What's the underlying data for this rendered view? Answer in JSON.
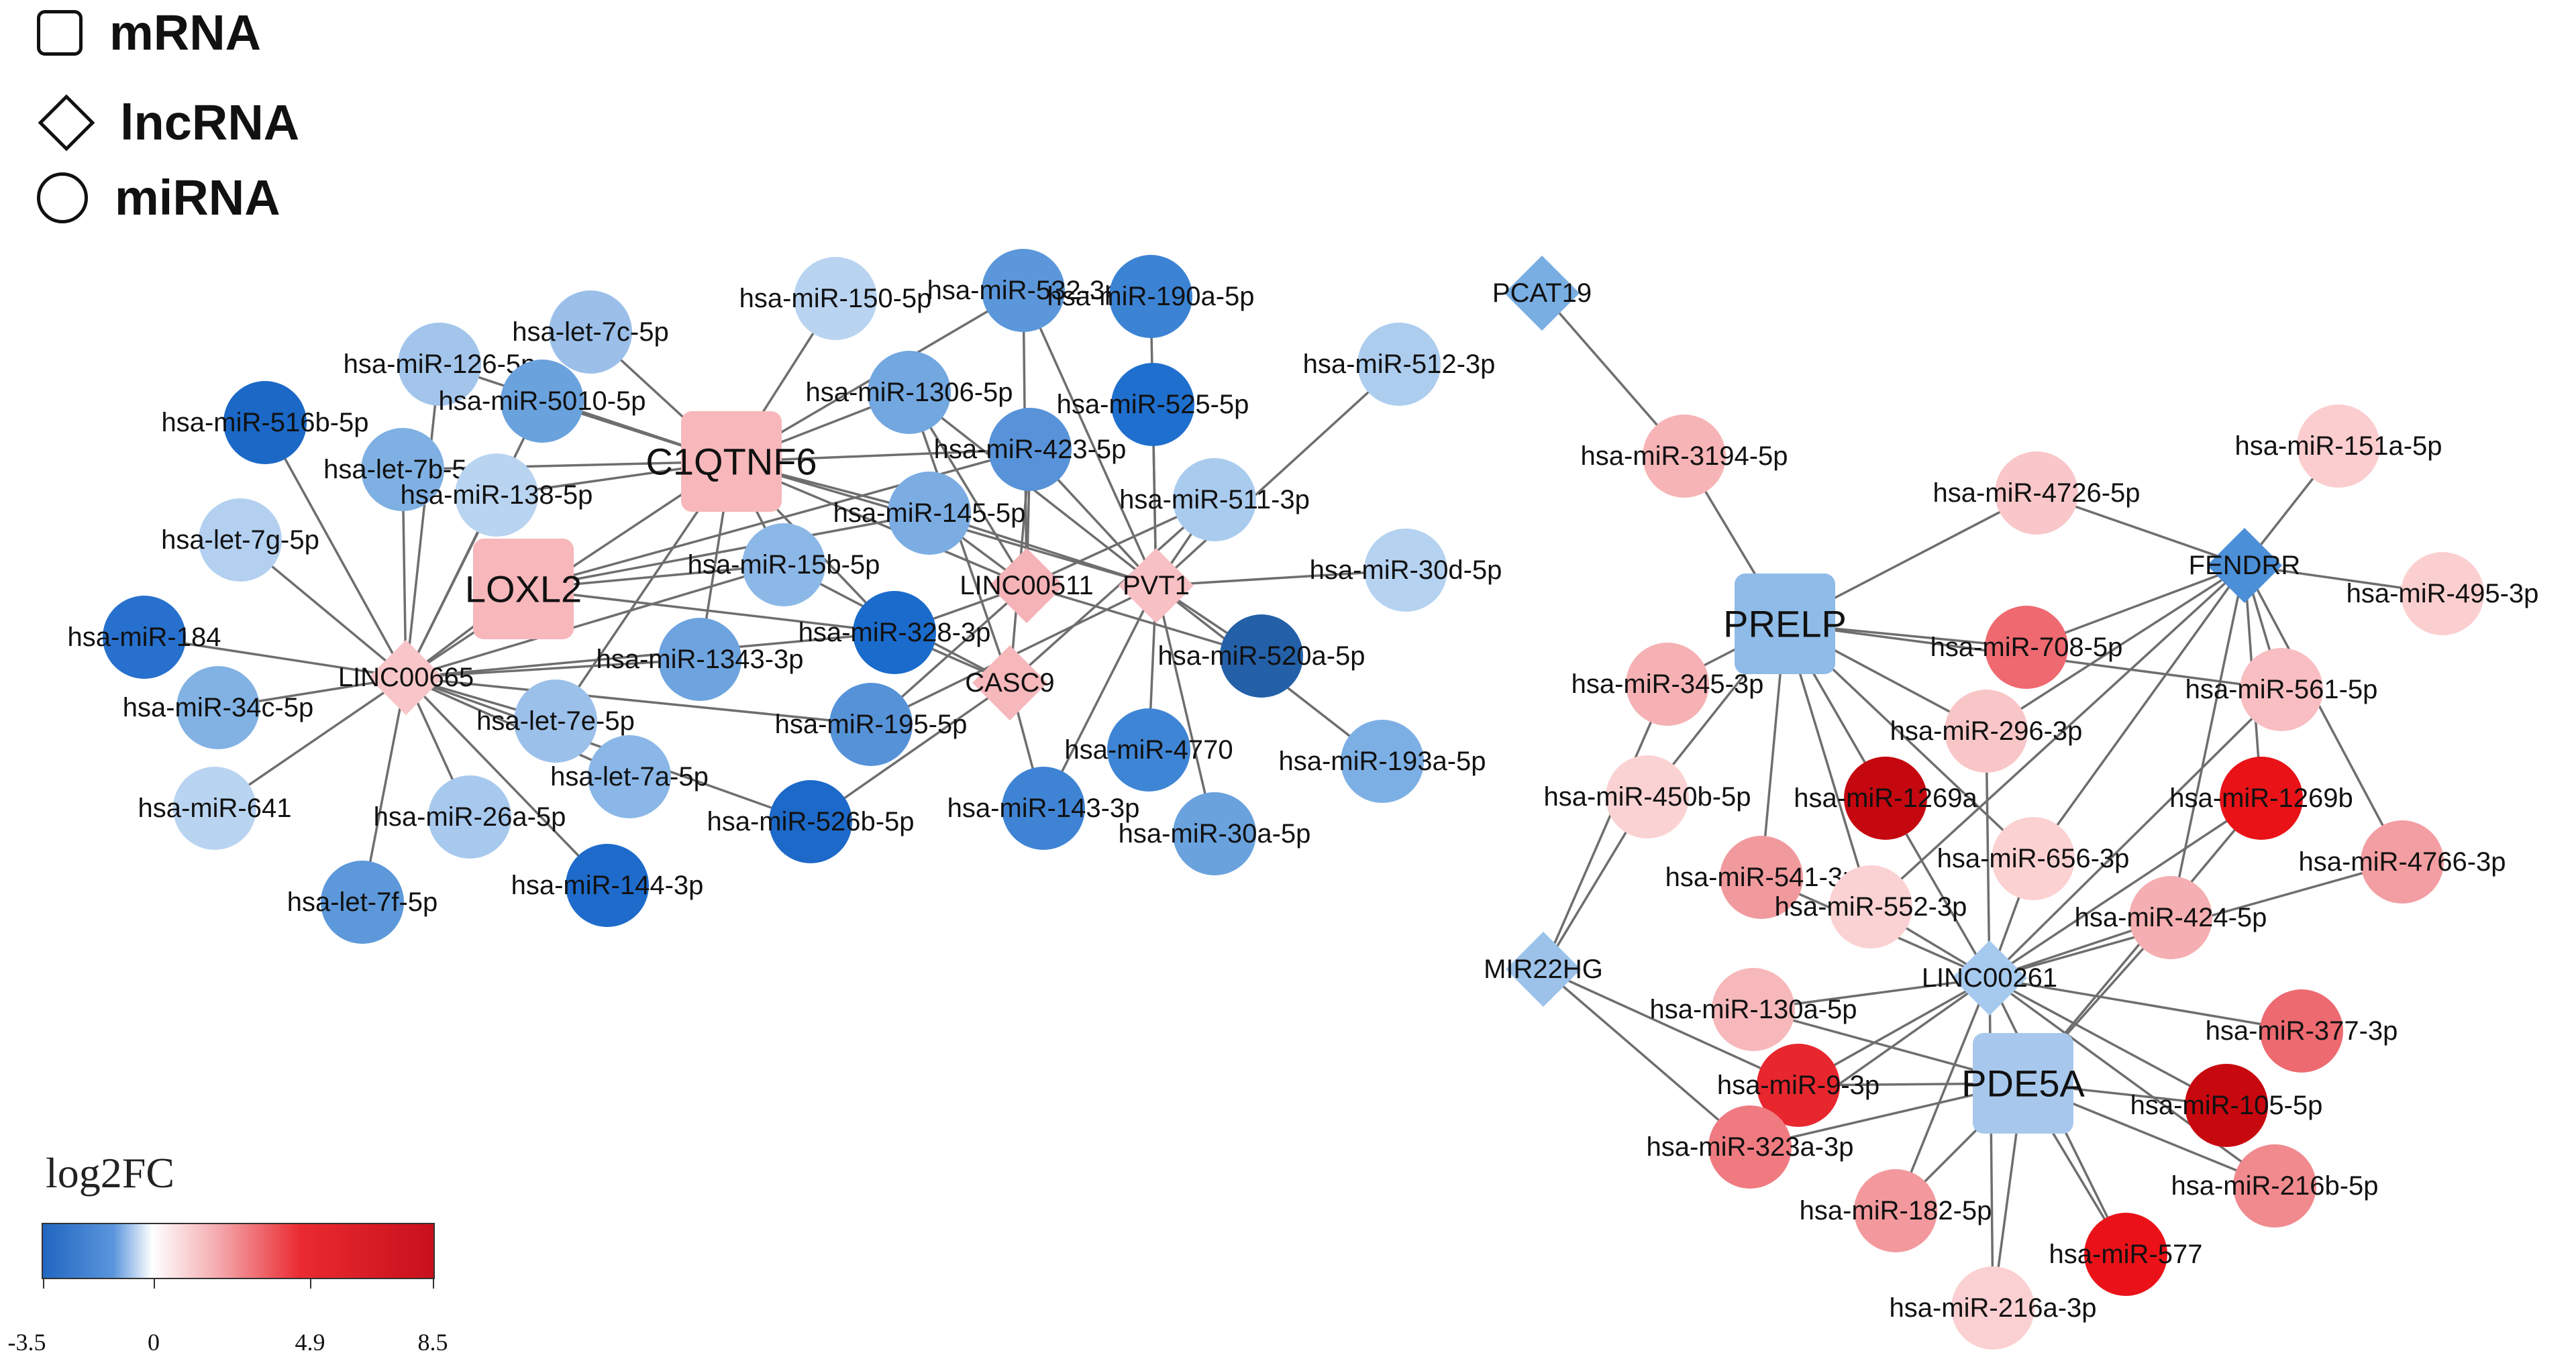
{
  "legend": {
    "shapes": [
      {
        "shape": "square",
        "label": "mRNA"
      },
      {
        "shape": "diamond",
        "label": "lncRNA"
      },
      {
        "shape": "circle",
        "label": "miRNA"
      }
    ],
    "colorbar": {
      "title": "log2FC",
      "ticks": [
        "-3.5",
        "0",
        "4.9",
        "8.5"
      ],
      "low_color": "#2166c1",
      "mid_color": "#ffffff",
      "high_color": "#c8101c"
    }
  },
  "nodes": [
    {
      "id": "C1QTNF6",
      "type": "mRNA",
      "color": "#f7b7bb",
      "big": true
    },
    {
      "id": "LOXL2",
      "type": "mRNA",
      "color": "#f7b7bb",
      "big": true
    },
    {
      "id": "PRELP",
      "type": "mRNA",
      "color": "#8fbbe8",
      "big": true
    },
    {
      "id": "PDE5A",
      "type": "mRNA",
      "color": "#a7c8ec",
      "big": true
    },
    {
      "id": "LINC00665",
      "type": "lncRNA",
      "color": "#f8c6c8"
    },
    {
      "id": "LINC00511",
      "type": "lncRNA",
      "color": "#f5b3b7"
    },
    {
      "id": "PVT1",
      "type": "lncRNA",
      "color": "#f7c0c3"
    },
    {
      "id": "CASC9",
      "type": "lncRNA",
      "color": "#f6b8bb"
    },
    {
      "id": "PCAT19",
      "type": "lncRNA",
      "color": "#79aee3"
    },
    {
      "id": "FENDRR",
      "type": "lncRNA",
      "color": "#4b8fd8"
    },
    {
      "id": "MIR22HG",
      "type": "lncRNA",
      "color": "#9cc2ea"
    },
    {
      "id": "LINC00261",
      "type": "lncRNA",
      "color": "#a6c9ee"
    },
    {
      "id": "hsa-miR-150-5p",
      "type": "miRNA",
      "color": "#b9d4f1"
    },
    {
      "id": "hsa-miR-532-3p",
      "type": "miRNA",
      "color": "#5b97da"
    },
    {
      "id": "hsa-miR-190a-5p",
      "type": "miRNA",
      "color": "#3c83d4"
    },
    {
      "id": "hsa-let-7c-5p",
      "type": "miRNA",
      "color": "#9bbfe9"
    },
    {
      "id": "hsa-miR-126-5p",
      "type": "miRNA",
      "color": "#a3c5eb"
    },
    {
      "id": "hsa-miR-5010-5p",
      "type": "miRNA",
      "color": "#6aa2de"
    },
    {
      "id": "hsa-miR-1306-5p",
      "type": "miRNA",
      "color": "#72a7e0"
    },
    {
      "id": "hsa-miR-525-5p",
      "type": "miRNA",
      "color": "#1f6fce"
    },
    {
      "id": "hsa-miR-512-3p",
      "type": "miRNA",
      "color": "#adcdef"
    },
    {
      "id": "hsa-miR-516b-5p",
      "type": "miRNA",
      "color": "#1b68c7"
    },
    {
      "id": "hsa-let-7b-5p",
      "type": "miRNA",
      "color": "#7fb0e3"
    },
    {
      "id": "hsa-miR-138-5p",
      "type": "miRNA",
      "color": "#b9d4f1"
    },
    {
      "id": "hsa-miR-423-5p",
      "type": "miRNA",
      "color": "#5893d9"
    },
    {
      "id": "hsa-miR-511-3p",
      "type": "miRNA",
      "color": "#a9cbee"
    },
    {
      "id": "hsa-miR-145-5p",
      "type": "miRNA",
      "color": "#7badE3"
    },
    {
      "id": "hsa-let-7g-5p",
      "type": "miRNA",
      "color": "#b3d0f0"
    },
    {
      "id": "hsa-miR-15b-5p",
      "type": "miRNA",
      "color": "#8cb8e7"
    },
    {
      "id": "hsa-miR-30d-5p",
      "type": "miRNA",
      "color": "#b5d2f1"
    },
    {
      "id": "hsa-miR-184",
      "type": "miRNA",
      "color": "#2770cd"
    },
    {
      "id": "hsa-miR-328-3p",
      "type": "miRNA",
      "color": "#1a6bcc"
    },
    {
      "id": "hsa-miR-520a-5p",
      "type": "miRNA",
      "color": "#2360a8"
    },
    {
      "id": "hsa-miR-1343-3p",
      "type": "miRNA",
      "color": "#6da4df"
    },
    {
      "id": "hsa-miR-34c-5p",
      "type": "miRNA",
      "color": "#82b2e4"
    },
    {
      "id": "hsa-let-7e-5p",
      "type": "miRNA",
      "color": "#9bc0ea"
    },
    {
      "id": "hsa-miR-195-5p",
      "type": "miRNA",
      "color": "#5592d8"
    },
    {
      "id": "hsa-miR-4770",
      "type": "miRNA",
      "color": "#3f85d5"
    },
    {
      "id": "hsa-miR-193a-5p",
      "type": "miRNA",
      "color": "#7cafe4"
    },
    {
      "id": "hsa-let-7a-5p",
      "type": "miRNA",
      "color": "#8ab7e7"
    },
    {
      "id": "hsa-miR-641",
      "type": "miRNA",
      "color": "#b9d4f1"
    },
    {
      "id": "hsa-miR-26a-5p",
      "type": "miRNA",
      "color": "#a8c9ee"
    },
    {
      "id": "hsa-miR-526b-5p",
      "type": "miRNA",
      "color": "#1d69c9"
    },
    {
      "id": "hsa-miR-143-3p",
      "type": "miRNA",
      "color": "#3f84d4"
    },
    {
      "id": "hsa-miR-30a-5p",
      "type": "miRNA",
      "color": "#6aa2de"
    },
    {
      "id": "hsa-miR-144-3p",
      "type": "miRNA",
      "color": "#1e6bcb"
    },
    {
      "id": "hsa-let-7f-5p",
      "type": "miRNA",
      "color": "#5c98da"
    },
    {
      "id": "hsa-miR-3194-5p",
      "type": "miRNA",
      "color": "#f6b4b6"
    },
    {
      "id": "hsa-miR-151a-5p",
      "type": "miRNA",
      "color": "#fbcdcf"
    },
    {
      "id": "hsa-miR-4726-5p",
      "type": "miRNA",
      "color": "#f9c7c9"
    },
    {
      "id": "hsa-miR-495-3p",
      "type": "miRNA",
      "color": "#fbcfd0"
    },
    {
      "id": "hsa-miR-708-5p",
      "type": "miRNA",
      "color": "#ee6970"
    },
    {
      "id": "hsa-miR-345-3p",
      "type": "miRNA",
      "color": "#f5b1b4"
    },
    {
      "id": "hsa-miR-561-5p",
      "type": "miRNA",
      "color": "#f8bec1"
    },
    {
      "id": "hsa-miR-296-3p",
      "type": "miRNA",
      "color": "#f9c6c8"
    },
    {
      "id": "hsa-miR-450b-5p",
      "type": "miRNA",
      "color": "#fbd2d3"
    },
    {
      "id": "hsa-miR-1269a",
      "type": "miRNA",
      "color": "#c5070f"
    },
    {
      "id": "hsa-miR-1269b",
      "type": "miRNA",
      "color": "#e81217"
    },
    {
      "id": "hsa-miR-656-3p",
      "type": "miRNA",
      "color": "#fbd1d2"
    },
    {
      "id": "hsa-miR-4766-3p",
      "type": "miRNA",
      "color": "#f39ea2"
    },
    {
      "id": "hsa-miR-541-3p",
      "type": "miRNA",
      "color": "#f19a9e"
    },
    {
      "id": "hsa-miR-552-3p",
      "type": "miRNA",
      "color": "#fbd2d3"
    },
    {
      "id": "hsa-miR-424-5p",
      "type": "miRNA",
      "color": "#f5aeb1"
    },
    {
      "id": "hsa-miR-130a-5p",
      "type": "miRNA",
      "color": "#f7b8bb"
    },
    {
      "id": "hsa-miR-377-3p",
      "type": "miRNA",
      "color": "#ec6a70"
    },
    {
      "id": "hsa-miR-9-3p",
      "type": "miRNA",
      "color": "#e8262e"
    },
    {
      "id": "hsa-miR-105-5p",
      "type": "miRNA",
      "color": "#c8080f"
    },
    {
      "id": "hsa-miR-323a-3p",
      "type": "miRNA",
      "color": "#ef7b81"
    },
    {
      "id": "hsa-miR-216b-5p",
      "type": "miRNA",
      "color": "#f08a8e"
    },
    {
      "id": "hsa-miR-182-5p",
      "type": "miRNA",
      "color": "#f3999d"
    },
    {
      "id": "hsa-miR-577",
      "type": "miRNA",
      "color": "#ea1218"
    },
    {
      "id": "hsa-miR-216a-3p",
      "type": "miRNA",
      "color": "#fbd0d2"
    }
  ],
  "edges": [
    [
      "C1QTNF6",
      "hsa-miR-150-5p"
    ],
    [
      "C1QTNF6",
      "hsa-miR-532-3p"
    ],
    [
      "C1QTNF6",
      "hsa-let-7c-5p"
    ],
    [
      "C1QTNF6",
      "hsa-miR-126-5p"
    ],
    [
      "C1QTNF6",
      "hsa-miR-5010-5p"
    ],
    [
      "C1QTNF6",
      "hsa-miR-1306-5p"
    ],
    [
      "C1QTNF6",
      "hsa-miR-423-5p"
    ],
    [
      "C1QTNF6",
      "hsa-let-7b-5p"
    ],
    [
      "C1QTNF6",
      "hsa-miR-138-5p"
    ],
    [
      "C1QTNF6",
      "hsa-miR-145-5p"
    ],
    [
      "C1QTNF6",
      "hsa-miR-15b-5p"
    ],
    [
      "C1QTNF6",
      "hsa-miR-1343-3p"
    ],
    [
      "C1QTNF6",
      "hsa-let-7e-5p"
    ],
    [
      "C1QTNF6",
      "hsa-miR-328-3p"
    ],
    [
      "C1QTNF6",
      "LINC00665"
    ],
    [
      "C1QTNF6",
      "PVT1"
    ],
    [
      "C1QTNF6",
      "LINC00511"
    ],
    [
      "LOXL2",
      "LINC00665"
    ],
    [
      "LOXL2",
      "hsa-miR-423-5p"
    ],
    [
      "LOXL2",
      "hsa-miR-328-3p"
    ],
    [
      "LOXL2",
      "hsa-miR-145-5p"
    ],
    [
      "LOXL2",
      "hsa-miR-15b-5p"
    ],
    [
      "LINC00665",
      "hsa-miR-516b-5p"
    ],
    [
      "LINC00665",
      "hsa-let-7b-5p"
    ],
    [
      "LINC00665",
      "hsa-let-7g-5p"
    ],
    [
      "LINC00665",
      "hsa-miR-184"
    ],
    [
      "LINC00665",
      "hsa-miR-34c-5p"
    ],
    [
      "LINC00665",
      "hsa-miR-641"
    ],
    [
      "LINC00665",
      "hsa-miR-26a-5p"
    ],
    [
      "LINC00665",
      "hsa-let-7f-5p"
    ],
    [
      "LINC00665",
      "hsa-miR-144-3p"
    ],
    [
      "LINC00665",
      "hsa-let-7a-5p"
    ],
    [
      "LINC00665",
      "hsa-let-7e-5p"
    ],
    [
      "LINC00665",
      "hsa-miR-526b-5p"
    ],
    [
      "LINC00665",
      "hsa-miR-1343-3p"
    ],
    [
      "LINC00665",
      "hsa-miR-15b-5p"
    ],
    [
      "LINC00665",
      "hsa-miR-5010-5p"
    ],
    [
      "LINC00665",
      "hsa-miR-126-5p"
    ],
    [
      "LINC00665",
      "hsa-miR-138-5p"
    ],
    [
      "LINC00665",
      "hsa-miR-195-5p"
    ],
    [
      "LINC00665",
      "hsa-miR-328-3p"
    ],
    [
      "PVT1",
      "hsa-miR-190a-5p"
    ],
    [
      "PVT1",
      "hsa-miR-525-5p"
    ],
    [
      "PVT1",
      "hsa-miR-512-3p"
    ],
    [
      "PVT1",
      "hsa-miR-511-3p"
    ],
    [
      "PVT1",
      "hsa-miR-30d-5p"
    ],
    [
      "PVT1",
      "hsa-miR-520a-5p"
    ],
    [
      "PVT1",
      "hsa-miR-4770"
    ],
    [
      "PVT1",
      "hsa-miR-193a-5p"
    ],
    [
      "PVT1",
      "hsa-miR-30a-5p"
    ],
    [
      "PVT1",
      "hsa-miR-143-3p"
    ],
    [
      "PVT1",
      "hsa-miR-195-5p"
    ],
    [
      "PVT1",
      "hsa-miR-1306-5p"
    ],
    [
      "PVT1",
      "hsa-miR-423-5p"
    ],
    [
      "PVT1",
      "hsa-miR-145-5p"
    ],
    [
      "PVT1",
      "hsa-miR-532-3p"
    ],
    [
      "LINC00511",
      "hsa-miR-532-3p"
    ],
    [
      "LINC00511",
      "hsa-miR-423-5p"
    ],
    [
      "LINC00511",
      "hsa-miR-511-3p"
    ],
    [
      "LINC00511",
      "hsa-miR-145-5p"
    ],
    [
      "LINC00511",
      "hsa-miR-195-5p"
    ],
    [
      "LINC00511",
      "hsa-miR-328-3p"
    ],
    [
      "LINC00511",
      "hsa-miR-1306-5p"
    ],
    [
      "LINC00511",
      "hsa-miR-520a-5p"
    ],
    [
      "CASC9",
      "hsa-miR-1306-5p"
    ],
    [
      "CASC9",
      "hsa-miR-423-5p"
    ],
    [
      "CASC9",
      "hsa-miR-143-3p"
    ],
    [
      "CASC9",
      "hsa-miR-526b-5p"
    ],
    [
      "CASC9",
      "hsa-miR-511-3p"
    ],
    [
      "CASC9",
      "hsa-miR-15b-5p"
    ],
    [
      "CASC9",
      "hsa-miR-328-3p"
    ],
    [
      "PCAT19",
      "hsa-miR-3194-5p"
    ],
    [
      "PRELP",
      "hsa-miR-3194-5p"
    ],
    [
      "PRELP",
      "hsa-miR-4726-5p"
    ],
    [
      "PRELP",
      "hsa-miR-708-5p"
    ],
    [
      "PRELP",
      "hsa-miR-345-3p"
    ],
    [
      "PRELP",
      "hsa-miR-561-5p"
    ],
    [
      "PRELP",
      "hsa-miR-296-3p"
    ],
    [
      "PRELP",
      "hsa-miR-450b-5p"
    ],
    [
      "PRELP",
      "hsa-miR-541-3p"
    ],
    [
      "PRELP",
      "hsa-miR-656-3p"
    ],
    [
      "PRELP",
      "hsa-miR-552-3p"
    ],
    [
      "PRELP",
      "hsa-miR-1269a"
    ],
    [
      "FENDRR",
      "hsa-miR-4726-5p"
    ],
    [
      "FENDRR",
      "hsa-miR-151a-5p"
    ],
    [
      "FENDRR",
      "hsa-miR-495-3p"
    ],
    [
      "FENDRR",
      "hsa-miR-561-5p"
    ],
    [
      "FENDRR",
      "hsa-miR-4766-3p"
    ],
    [
      "FENDRR",
      "hsa-miR-1269b"
    ],
    [
      "FENDRR",
      "hsa-miR-296-3p"
    ],
    [
      "FENDRR",
      "hsa-miR-656-3p"
    ],
    [
      "FENDRR",
      "hsa-miR-424-5p"
    ],
    [
      "FENDRR",
      "hsa-miR-708-5p"
    ],
    [
      "FENDRR",
      "hsa-miR-552-3p"
    ],
    [
      "MIR22HG",
      "hsa-miR-345-3p"
    ],
    [
      "MIR22HG",
      "hsa-miR-450b-5p"
    ],
    [
      "MIR22HG",
      "hsa-miR-9-3p"
    ],
    [
      "MIR22HG",
      "hsa-miR-323a-3p"
    ],
    [
      "LINC00261",
      "hsa-miR-1269a"
    ],
    [
      "LINC00261",
      "hsa-miR-1269b"
    ],
    [
      "LINC00261",
      "hsa-miR-656-3p"
    ],
    [
      "LINC00261",
      "hsa-miR-424-5p"
    ],
    [
      "LINC00261",
      "hsa-miR-4766-3p"
    ],
    [
      "LINC00261",
      "hsa-miR-541-3p"
    ],
    [
      "LINC00261",
      "hsa-miR-552-3p"
    ],
    [
      "LINC00261",
      "hsa-miR-130a-5p"
    ],
    [
      "LINC00261",
      "hsa-miR-377-3p"
    ],
    [
      "LINC00261",
      "hsa-miR-9-3p"
    ],
    [
      "LINC00261",
      "hsa-miR-105-5p"
    ],
    [
      "LINC00261",
      "hsa-miR-323a-3p"
    ],
    [
      "LINC00261",
      "hsa-miR-216b-5p"
    ],
    [
      "LINC00261",
      "hsa-miR-182-5p"
    ],
    [
      "LINC00261",
      "hsa-miR-577"
    ],
    [
      "LINC00261",
      "hsa-miR-216a-3p"
    ],
    [
      "LINC00261",
      "hsa-miR-296-3p"
    ],
    [
      "LINC00261",
      "hsa-miR-561-5p"
    ],
    [
      "PDE5A",
      "hsa-miR-1269b"
    ],
    [
      "PDE5A",
      "hsa-miR-9-3p"
    ],
    [
      "PDE5A",
      "hsa-miR-323a-3p"
    ],
    [
      "PDE5A",
      "hsa-miR-105-5p"
    ],
    [
      "PDE5A",
      "hsa-miR-577"
    ],
    [
      "PDE5A",
      "hsa-miR-182-5p"
    ],
    [
      "PDE5A",
      "hsa-miR-216a-3p"
    ],
    [
      "PDE5A",
      "hsa-miR-424-5p"
    ],
    [
      "PDE5A",
      "hsa-miR-130a-5p"
    ],
    [
      "PDE5A",
      "hsa-miR-216b-5p"
    ]
  ]
}
